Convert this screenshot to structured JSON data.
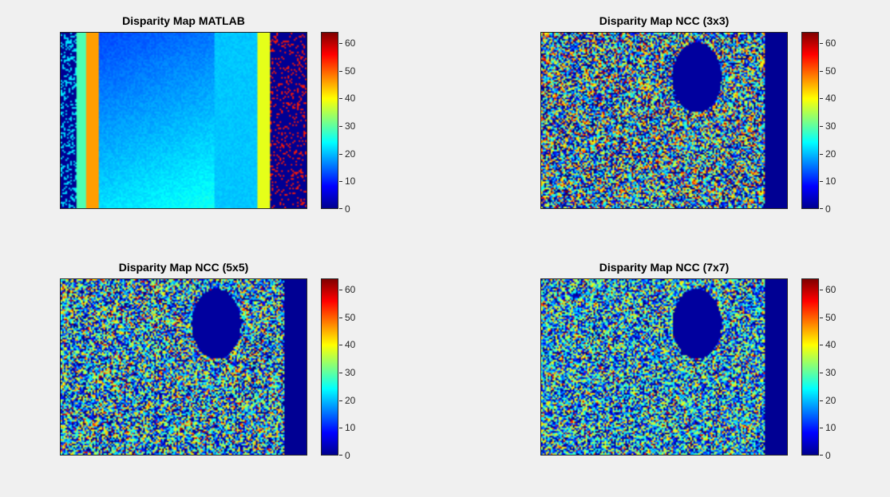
{
  "chart_data": [
    {
      "type": "heatmap",
      "title": "Disparity Map MATLAB",
      "colormap": "jet",
      "clim": [
        0,
        64
      ],
      "colorbar_ticks": [
        0,
        10,
        20,
        30,
        40,
        50,
        60
      ],
      "colorbar_tick_labels": [
        "0",
        "10",
        "20",
        "30",
        "40",
        "50",
        "60"
      ],
      "panel": "top-left"
    },
    {
      "type": "heatmap",
      "title": "Disparity Map NCC (3x3)",
      "colormap": "jet",
      "clim": [
        0,
        64
      ],
      "colorbar_ticks": [
        0,
        10,
        20,
        30,
        40,
        50,
        60
      ],
      "colorbar_tick_labels": [
        "0",
        "10",
        "20",
        "30",
        "40",
        "50",
        "60"
      ],
      "panel": "top-right"
    },
    {
      "type": "heatmap",
      "title": "Disparity Map NCC (5x5)",
      "colormap": "jet",
      "clim": [
        0,
        64
      ],
      "colorbar_ticks": [
        0,
        10,
        20,
        30,
        40,
        50,
        60
      ],
      "colorbar_tick_labels": [
        "0",
        "10",
        "20",
        "30",
        "40",
        "50",
        "60"
      ],
      "panel": "bottom-left"
    },
    {
      "type": "heatmap",
      "title": "Disparity Map NCC (7x7)",
      "colormap": "jet",
      "clim": [
        0,
        64
      ],
      "colorbar_ticks": [
        0,
        10,
        20,
        30,
        40,
        50,
        60
      ],
      "colorbar_tick_labels": [
        "0",
        "10",
        "20",
        "30",
        "40",
        "50",
        "60"
      ],
      "panel": "bottom-right"
    }
  ],
  "colors": {
    "background": "#f0f0f0",
    "axis": "#262626"
  }
}
